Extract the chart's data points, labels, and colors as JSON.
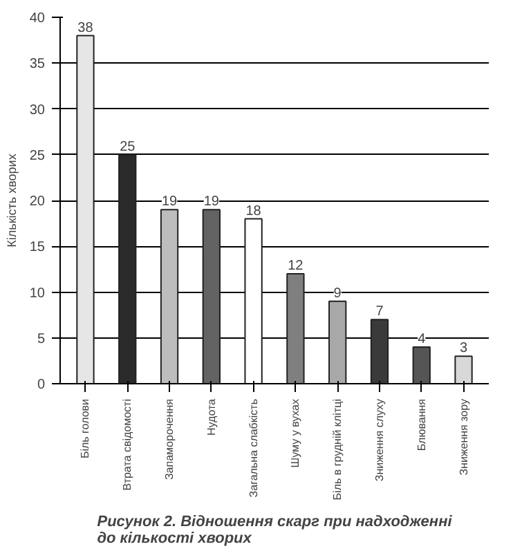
{
  "chart_data": {
    "type": "bar",
    "categories": [
      "Біль голови",
      "Втрата свідомості",
      "Запаморочення",
      "Нудота",
      "Загальна слабкість",
      "Шуму у вухах",
      "Біль в грудній клітці",
      "Зниження слуху",
      "Блювання",
      "Зниження зору"
    ],
    "values": [
      38,
      25,
      19,
      19,
      18,
      12,
      9,
      7,
      4,
      3
    ],
    "colors": [
      "#e6e6e6",
      "#2a2a2a",
      "#bdbdbd",
      "#636363",
      "#ffffff",
      "#7f7f7f",
      "#a8a8a8",
      "#3a3a3a",
      "#555555",
      "#d8d8d8"
    ],
    "ylabel": "Кількість хворих",
    "ylim": [
      0,
      40
    ],
    "yticks": [
      0,
      5,
      10,
      15,
      20,
      25,
      30,
      35,
      40
    ],
    "grid": "y",
    "data_labels": true,
    "annotations": [
      "Рисунок 2. Відношення скарг при надходженні\nдо кількості хворих"
    ]
  }
}
